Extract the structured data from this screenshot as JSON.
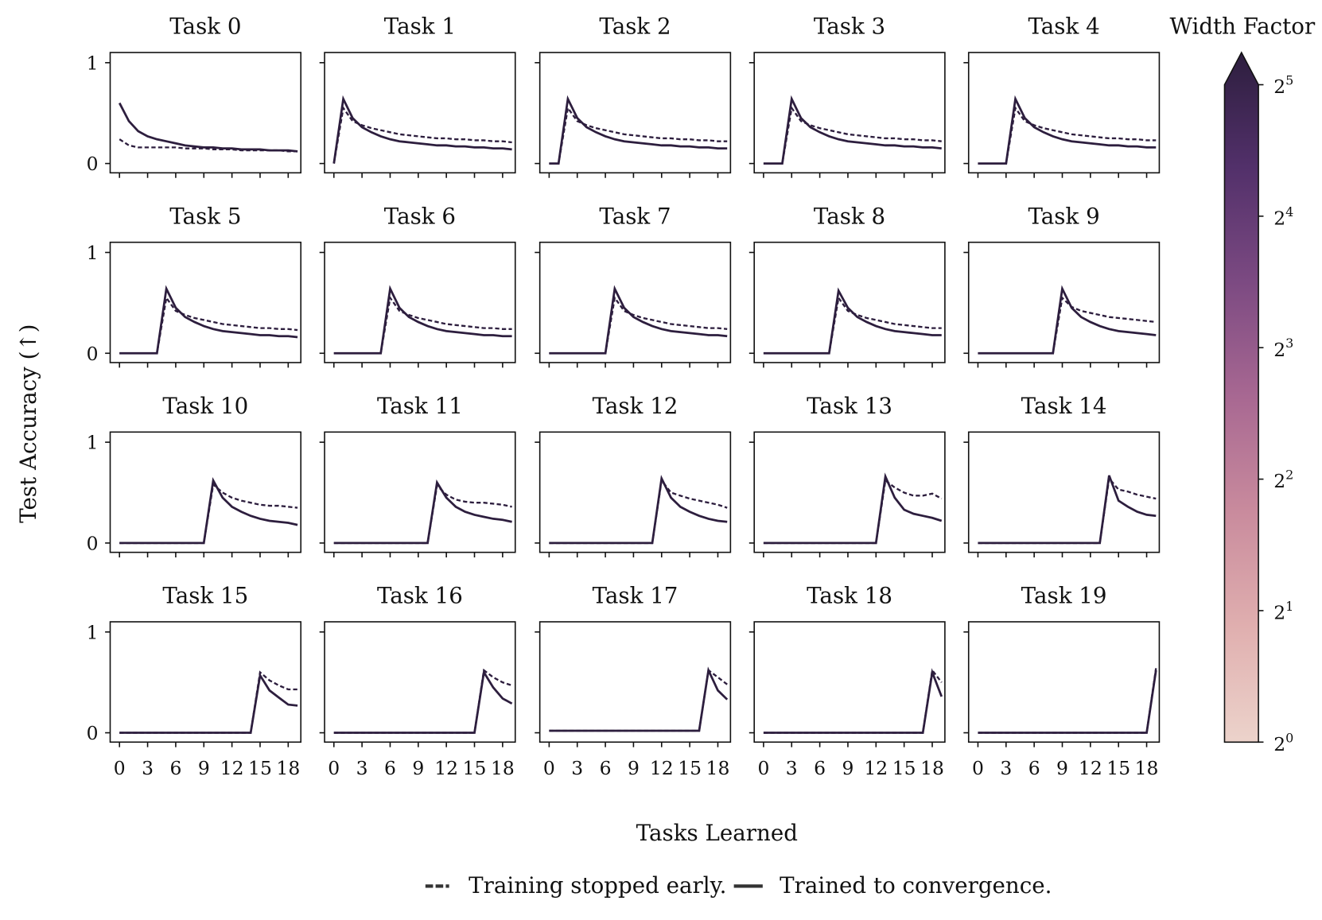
{
  "chart_data": {
    "type": "line",
    "layout": "small-multiples 4x5",
    "xlabel": "Tasks Learned",
    "ylabel": "Test Accuracy (↑)",
    "x": [
      0,
      1,
      2,
      3,
      4,
      5,
      6,
      7,
      8,
      9,
      10,
      11,
      12,
      13,
      14,
      15,
      16,
      17,
      18,
      19
    ],
    "xticks": [
      "0",
      "3",
      "6",
      "9",
      "12",
      "15",
      "18"
    ],
    "xtick_values": [
      0,
      3,
      6,
      9,
      12,
      15,
      18
    ],
    "yticks": [
      "0",
      "1"
    ],
    "ytick_values": [
      0,
      1
    ],
    "ylim": [
      -0.1,
      1.1
    ],
    "grid": false,
    "legend": {
      "placement": "bottom",
      "entries": [
        {
          "label": "Training stopped early.",
          "style": "dashed"
        },
        {
          "label": "Trained to convergence.",
          "style": "solid"
        }
      ]
    },
    "colorbar": {
      "title": "Width Factor",
      "ticks": [
        "2^0",
        "2^1",
        "2^2",
        "2^3",
        "2^4",
        "2^5"
      ],
      "tick_bases": [
        "2",
        "2",
        "2",
        "2",
        "2",
        "2"
      ],
      "tick_exps": [
        "0",
        "1",
        "2",
        "3",
        "4",
        "5"
      ],
      "scale": "log2",
      "extend": "max",
      "colors": [
        "#ecd3cb",
        "#e0afaf",
        "#c98b9d",
        "#a86892",
        "#7c4a82",
        "#52306a",
        "#2d1e3e"
      ]
    },
    "series_color": "#2d1e3e",
    "panels": [
      {
        "title": "Task 0",
        "converged": [
          0.6,
          0.42,
          0.32,
          0.27,
          0.24,
          0.22,
          0.2,
          0.18,
          0.17,
          0.16,
          0.16,
          0.15,
          0.15,
          0.14,
          0.14,
          0.14,
          0.13,
          0.13,
          0.13,
          0.12
        ],
        "early": [
          0.24,
          0.18,
          0.16,
          0.16,
          0.16,
          0.16,
          0.16,
          0.15,
          0.15,
          0.15,
          0.14,
          0.14,
          0.14,
          0.13,
          0.13,
          0.13,
          0.13,
          0.13,
          0.12,
          0.12
        ]
      },
      {
        "title": "Task 1",
        "converged": [
          0,
          0.64,
          0.45,
          0.36,
          0.31,
          0.27,
          0.24,
          0.22,
          0.21,
          0.2,
          0.19,
          0.18,
          0.18,
          0.17,
          0.17,
          0.16,
          0.16,
          0.15,
          0.15,
          0.14
        ],
        "early": [
          0,
          0.55,
          0.42,
          0.38,
          0.35,
          0.33,
          0.31,
          0.29,
          0.28,
          0.27,
          0.26,
          0.25,
          0.25,
          0.24,
          0.24,
          0.23,
          0.23,
          0.22,
          0.22,
          0.21
        ]
      },
      {
        "title": "Task 2",
        "converged": [
          0,
          0,
          0.64,
          0.45,
          0.36,
          0.31,
          0.27,
          0.24,
          0.22,
          0.21,
          0.2,
          0.19,
          0.18,
          0.18,
          0.17,
          0.17,
          0.16,
          0.16,
          0.15,
          0.15
        ],
        "early": [
          0,
          0,
          0.55,
          0.42,
          0.38,
          0.35,
          0.33,
          0.31,
          0.29,
          0.28,
          0.27,
          0.26,
          0.25,
          0.25,
          0.24,
          0.24,
          0.23,
          0.23,
          0.22,
          0.22
        ]
      },
      {
        "title": "Task 3",
        "converged": [
          0,
          0,
          0,
          0.64,
          0.45,
          0.36,
          0.31,
          0.27,
          0.24,
          0.22,
          0.21,
          0.2,
          0.19,
          0.18,
          0.18,
          0.17,
          0.17,
          0.16,
          0.16,
          0.15
        ],
        "early": [
          0,
          0,
          0,
          0.55,
          0.42,
          0.38,
          0.35,
          0.33,
          0.31,
          0.29,
          0.28,
          0.27,
          0.26,
          0.25,
          0.25,
          0.24,
          0.24,
          0.23,
          0.23,
          0.22
        ]
      },
      {
        "title": "Task 4",
        "converged": [
          0,
          0,
          0,
          0,
          0.64,
          0.45,
          0.36,
          0.31,
          0.27,
          0.24,
          0.22,
          0.21,
          0.2,
          0.19,
          0.18,
          0.18,
          0.17,
          0.17,
          0.16,
          0.16
        ],
        "early": [
          0,
          0,
          0,
          0,
          0.55,
          0.42,
          0.38,
          0.35,
          0.33,
          0.31,
          0.29,
          0.28,
          0.27,
          0.26,
          0.25,
          0.25,
          0.24,
          0.24,
          0.23,
          0.23
        ]
      },
      {
        "title": "Task 5",
        "converged": [
          0,
          0,
          0,
          0,
          0,
          0.64,
          0.45,
          0.36,
          0.31,
          0.27,
          0.24,
          0.22,
          0.21,
          0.2,
          0.19,
          0.18,
          0.18,
          0.17,
          0.17,
          0.16
        ],
        "early": [
          0,
          0,
          0,
          0,
          0,
          0.55,
          0.42,
          0.38,
          0.35,
          0.33,
          0.31,
          0.29,
          0.28,
          0.27,
          0.26,
          0.25,
          0.25,
          0.24,
          0.24,
          0.23
        ]
      },
      {
        "title": "Task 6",
        "converged": [
          0,
          0,
          0,
          0,
          0,
          0,
          0.64,
          0.45,
          0.36,
          0.31,
          0.27,
          0.24,
          0.22,
          0.21,
          0.2,
          0.19,
          0.18,
          0.18,
          0.17,
          0.17
        ],
        "early": [
          0,
          0,
          0,
          0,
          0,
          0,
          0.55,
          0.42,
          0.38,
          0.35,
          0.33,
          0.31,
          0.29,
          0.28,
          0.27,
          0.26,
          0.25,
          0.25,
          0.24,
          0.24
        ]
      },
      {
        "title": "Task 7",
        "converged": [
          0,
          0,
          0,
          0,
          0,
          0,
          0,
          0.64,
          0.45,
          0.36,
          0.31,
          0.27,
          0.24,
          0.22,
          0.21,
          0.2,
          0.19,
          0.18,
          0.18,
          0.17
        ],
        "early": [
          0,
          0,
          0,
          0,
          0,
          0,
          0,
          0.55,
          0.42,
          0.38,
          0.35,
          0.33,
          0.31,
          0.29,
          0.28,
          0.27,
          0.26,
          0.25,
          0.25,
          0.24
        ]
      },
      {
        "title": "Task 8",
        "converged": [
          0,
          0,
          0,
          0,
          0,
          0,
          0,
          0,
          0.62,
          0.45,
          0.36,
          0.31,
          0.27,
          0.24,
          0.22,
          0.21,
          0.2,
          0.19,
          0.18,
          0.18
        ],
        "early": [
          0,
          0,
          0,
          0,
          0,
          0,
          0,
          0,
          0.55,
          0.42,
          0.38,
          0.35,
          0.33,
          0.31,
          0.29,
          0.28,
          0.27,
          0.26,
          0.25,
          0.25
        ]
      },
      {
        "title": "Task 9",
        "converged": [
          0,
          0,
          0,
          0,
          0,
          0,
          0,
          0,
          0,
          0.64,
          0.45,
          0.36,
          0.31,
          0.27,
          0.24,
          0.22,
          0.21,
          0.2,
          0.19,
          0.18
        ],
        "early": [
          0,
          0,
          0,
          0,
          0,
          0,
          0,
          0,
          0,
          0.55,
          0.46,
          0.42,
          0.4,
          0.38,
          0.36,
          0.35,
          0.34,
          0.33,
          0.32,
          0.31
        ]
      },
      {
        "title": "Task 10",
        "converged": [
          0,
          0,
          0,
          0,
          0,
          0,
          0,
          0,
          0,
          0,
          0.62,
          0.45,
          0.36,
          0.31,
          0.27,
          0.24,
          0.22,
          0.21,
          0.2,
          0.18
        ],
        "early": [
          0,
          0,
          0,
          0,
          0,
          0,
          0,
          0,
          0,
          0,
          0.58,
          0.5,
          0.45,
          0.42,
          0.4,
          0.38,
          0.37,
          0.37,
          0.36,
          0.35
        ]
      },
      {
        "title": "Task 11",
        "converged": [
          0,
          0,
          0,
          0,
          0,
          0,
          0,
          0,
          0,
          0,
          0,
          0.6,
          0.45,
          0.36,
          0.31,
          0.28,
          0.26,
          0.24,
          0.23,
          0.21
        ],
        "early": [
          0,
          0,
          0,
          0,
          0,
          0,
          0,
          0,
          0,
          0,
          0,
          0.57,
          0.48,
          0.43,
          0.41,
          0.4,
          0.4,
          0.39,
          0.38,
          0.36
        ]
      },
      {
        "title": "Task 12",
        "converged": [
          0,
          0,
          0,
          0,
          0,
          0,
          0,
          0,
          0,
          0,
          0,
          0,
          0.64,
          0.45,
          0.36,
          0.31,
          0.27,
          0.24,
          0.22,
          0.21
        ],
        "early": [
          0,
          0,
          0,
          0,
          0,
          0,
          0,
          0,
          0,
          0,
          0,
          0,
          0.62,
          0.5,
          0.47,
          0.44,
          0.42,
          0.4,
          0.38,
          0.35
        ]
      },
      {
        "title": "Task 13",
        "converged": [
          0,
          0,
          0,
          0,
          0,
          0,
          0,
          0,
          0,
          0,
          0,
          0,
          0,
          0.66,
          0.45,
          0.33,
          0.29,
          0.27,
          0.25,
          0.22
        ],
        "early": [
          0,
          0,
          0,
          0,
          0,
          0,
          0,
          0,
          0,
          0,
          0,
          0,
          0,
          0.62,
          0.55,
          0.5,
          0.47,
          0.47,
          0.49,
          0.44
        ]
      },
      {
        "title": "Task 14",
        "converged": [
          0,
          0,
          0,
          0,
          0,
          0,
          0,
          0,
          0,
          0,
          0,
          0,
          0,
          0,
          0.67,
          0.42,
          0.36,
          0.31,
          0.28,
          0.27
        ],
        "early": [
          0,
          0,
          0,
          0,
          0,
          0,
          0,
          0,
          0,
          0,
          0,
          0,
          0,
          0,
          0.64,
          0.53,
          0.51,
          0.48,
          0.46,
          0.44
        ]
      },
      {
        "title": "Task 15",
        "converged": [
          0,
          0,
          0,
          0,
          0,
          0,
          0,
          0,
          0,
          0,
          0,
          0,
          0,
          0,
          0,
          0.57,
          0.42,
          0.35,
          0.28,
          0.27
        ],
        "early": [
          0,
          0,
          0,
          0,
          0,
          0,
          0,
          0,
          0,
          0,
          0,
          0,
          0,
          0,
          0,
          0.6,
          0.52,
          0.47,
          0.43,
          0.43
        ]
      },
      {
        "title": "Task 16",
        "converged": [
          0,
          0,
          0,
          0,
          0,
          0,
          0,
          0,
          0,
          0,
          0,
          0,
          0,
          0,
          0,
          0,
          0.6,
          0.45,
          0.34,
          0.29
        ],
        "early": [
          0,
          0,
          0,
          0,
          0,
          0,
          0,
          0,
          0,
          0,
          0,
          0,
          0,
          0,
          0,
          0,
          0.62,
          0.55,
          0.5,
          0.47
        ]
      },
      {
        "title": "Task 17",
        "converged": [
          0.02,
          0.02,
          0.02,
          0.02,
          0.02,
          0.02,
          0.02,
          0.02,
          0.02,
          0.02,
          0.02,
          0.02,
          0.02,
          0.02,
          0.02,
          0.02,
          0.02,
          0.62,
          0.42,
          0.33
        ],
        "early": [
          0.02,
          0.02,
          0.02,
          0.02,
          0.02,
          0.02,
          0.02,
          0.02,
          0.02,
          0.02,
          0.02,
          0.02,
          0.02,
          0.02,
          0.02,
          0.02,
          0.02,
          0.62,
          0.55,
          0.48
        ]
      },
      {
        "title": "Task 18",
        "converged": [
          0,
          0,
          0,
          0,
          0,
          0,
          0,
          0,
          0,
          0,
          0,
          0,
          0,
          0,
          0,
          0,
          0,
          0,
          0.6,
          0.36
        ],
        "early": [
          0,
          0,
          0,
          0,
          0,
          0,
          0,
          0,
          0,
          0,
          0,
          0,
          0,
          0,
          0,
          0,
          0,
          0,
          0.62,
          0.5
        ]
      },
      {
        "title": "Task 19",
        "converged": [
          0,
          0,
          0,
          0,
          0,
          0,
          0,
          0,
          0,
          0,
          0,
          0,
          0,
          0,
          0,
          0,
          0,
          0,
          0,
          0.62
        ],
        "early": [
          0,
          0,
          0,
          0,
          0,
          0,
          0,
          0,
          0,
          0,
          0,
          0,
          0,
          0,
          0,
          0,
          0,
          0,
          0,
          0.64
        ]
      }
    ]
  }
}
